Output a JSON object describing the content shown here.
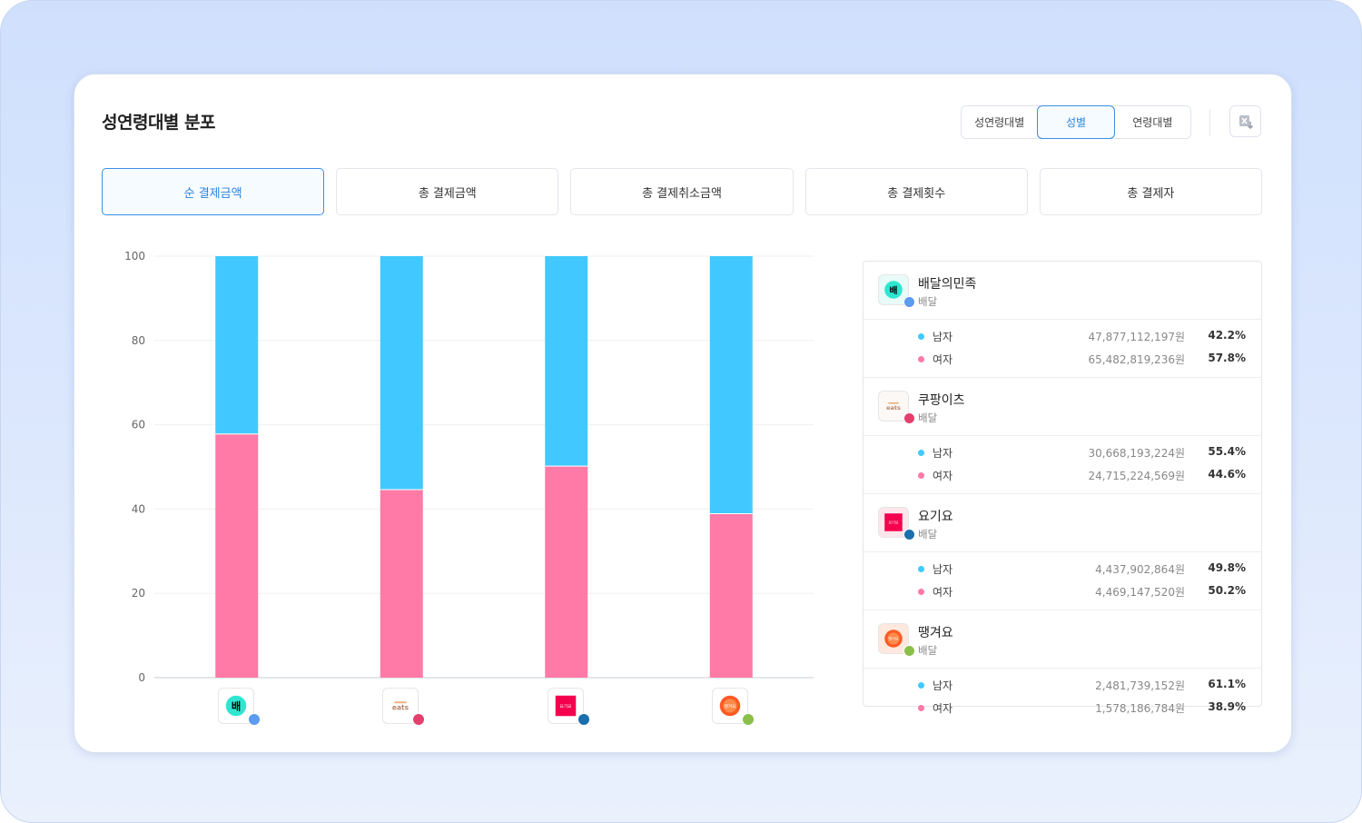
{
  "title": "성연령대별 분포",
  "segment": {
    "items": [
      "성연령대별",
      "성별",
      "연령대별"
    ],
    "active": 1
  },
  "tabs": [
    "순 결제금액",
    "총 결제금액",
    "총 결제취소금액",
    "총 결제횟수",
    "총 결제자"
  ],
  "active_tab": 0,
  "colors": {
    "male": "#41c9ff",
    "female": "#ff7aa6",
    "accent": "#3a8fe6"
  },
  "brands": [
    {
      "name": "배달의민족",
      "category": "배달",
      "logo": "baemin-logo",
      "logo_text": "배",
      "dot_color": "#5b9bf0",
      "male": {
        "label": "남자",
        "amount": "47,877,112,197원",
        "pct": "42.2%"
      },
      "female": {
        "label": "여자",
        "amount": "65,482,819,236원",
        "pct": "57.8%"
      }
    },
    {
      "name": "쿠팡이츠",
      "category": "배달",
      "logo": "coupang-eats-logo",
      "logo_text": "eats",
      "dot_color": "#e4406c",
      "male": {
        "label": "남자",
        "amount": "30,668,193,224원",
        "pct": "55.4%"
      },
      "female": {
        "label": "여자",
        "amount": "24,715,224,569원",
        "pct": "44.6%"
      }
    },
    {
      "name": "요기요",
      "category": "배달",
      "logo": "yogiyo-logo",
      "logo_text": "요기요",
      "dot_color": "#1a6fad",
      "male": {
        "label": "남자",
        "amount": "4,437,902,864원",
        "pct": "49.8%"
      },
      "female": {
        "label": "여자",
        "amount": "4,469,147,520원",
        "pct": "50.2%"
      }
    },
    {
      "name": "땡겨요",
      "category": "배달",
      "logo": "ddangyo-logo",
      "logo_text": "땡겨요",
      "dot_color": "#8ac04a",
      "male": {
        "label": "남자",
        "amount": "2,481,739,152원",
        "pct": "61.1%"
      },
      "female": {
        "label": "여자",
        "amount": "1,578,186,784원",
        "pct": "38.9%"
      }
    }
  ],
  "chart_data": {
    "type": "bar",
    "stacked": true,
    "categories": [
      "배달의민족",
      "쿠팡이츠",
      "요기요",
      "땡겨요"
    ],
    "series": [
      {
        "name": "여자",
        "values": [
          57.8,
          44.6,
          50.2,
          38.9
        ],
        "color": "#ff7aa6"
      },
      {
        "name": "남자",
        "values": [
          42.2,
          55.4,
          49.8,
          61.1
        ],
        "color": "#41c9ff"
      }
    ],
    "yticks": [
      0,
      20,
      40,
      60,
      80,
      100
    ],
    "ylim": [
      0,
      100
    ],
    "grid": true
  }
}
